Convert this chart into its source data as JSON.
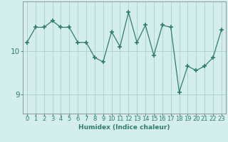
{
  "x": [
    0,
    1,
    2,
    3,
    4,
    5,
    6,
    7,
    8,
    9,
    10,
    11,
    12,
    13,
    14,
    15,
    16,
    17,
    18,
    19,
    20,
    21,
    22,
    23
  ],
  "y": [
    10.2,
    10.55,
    10.55,
    10.7,
    10.55,
    10.55,
    10.2,
    10.2,
    9.85,
    9.75,
    10.45,
    10.1,
    10.9,
    10.2,
    10.6,
    9.9,
    10.6,
    10.55,
    9.05,
    9.65,
    9.55,
    9.65,
    9.85,
    10.5
  ],
  "line_color": "#2e7d6e",
  "marker": "+",
  "marker_color": "#2e7d6e",
  "bg_color": "#d4eeee",
  "grid_color": "#aacece",
  "xlabel": "Humidex (Indice chaleur)",
  "yticks": [
    9,
    10
  ],
  "ylim": [
    8.55,
    11.15
  ],
  "xlim": [
    -0.5,
    23.5
  ],
  "tick_color": "#2e7d6e",
  "axis_color": "#888888",
  "xlabel_fontsize": 6.5,
  "tick_fontsize": 6.0,
  "ytick_fontsize": 7.5
}
